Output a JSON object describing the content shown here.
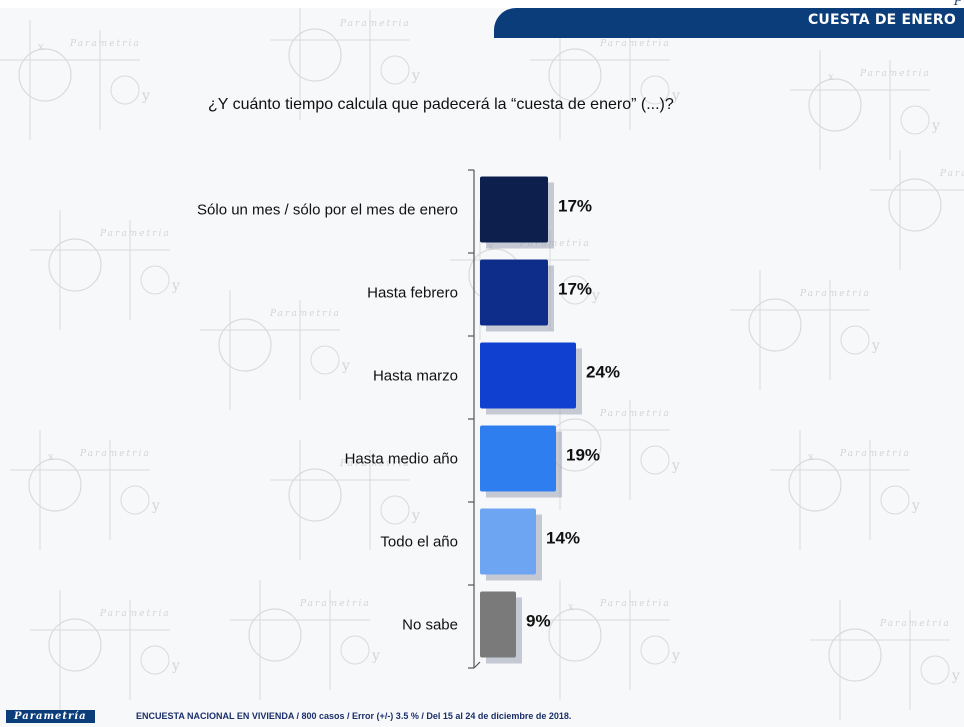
{
  "header": {
    "section_title": "CUESTA DE ENERO",
    "corner_mark": "P"
  },
  "question": "¿Y cuánto tiempo calcula que padecerá la “cuesta de enero” (...)?",
  "chart_data": {
    "type": "bar",
    "orientation": "horizontal",
    "title": "¿Y cuánto tiempo calcula que padecerá la “cuesta de enero” (...)?",
    "categories": [
      "Sólo un mes / sólo por el mes de enero",
      "Hasta febrero",
      "Hasta marzo",
      "Hasta medio año",
      "Todo el año",
      "No sabe"
    ],
    "values": [
      17,
      17,
      24,
      19,
      14,
      9
    ],
    "value_labels": [
      "17%",
      "17%",
      "24%",
      "19%",
      "14%",
      "9%"
    ],
    "colors": [
      "#0d1f4d",
      "#0e2d8a",
      "#1040d0",
      "#2f7ef0",
      "#6ea5f2",
      "#7a7a7a"
    ],
    "unit": "%",
    "grid": false,
    "legend": "none"
  },
  "footer": {
    "logo": "Parametría",
    "note": "ENCUESTA NACIONAL EN VIVIENDA / 800 casos / Error (+/-) 3.5 % / Del 15 al 24 de diciembre de 2018."
  },
  "watermark": {
    "text": "Parametria",
    "glyph": "y",
    "axis_glyph": "x"
  }
}
